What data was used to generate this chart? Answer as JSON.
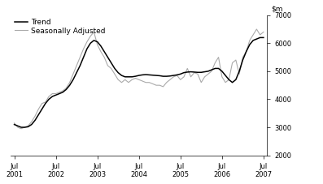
{
  "ylim": [
    2000,
    7000
  ],
  "yticks": [
    2000,
    3000,
    4000,
    5000,
    6000,
    7000
  ],
  "legend_entries": [
    "Trend",
    "Seasonally Adjusted"
  ],
  "trend_color": "#000000",
  "seasonal_color": "#aaaaaa",
  "trend_lw": 1.1,
  "seasonal_lw": 0.8,
  "background_color": "#ffffff",
  "x_tick_labels": [
    "Jul\n2001",
    "Jul\n2002",
    "Jul\n2003",
    "Jul\n2004",
    "Jul\n2005",
    "Jul\n2006",
    "Jul\n2007"
  ],
  "x_tick_positions": [
    0,
    12,
    24,
    36,
    48,
    60,
    72
  ],
  "trend_x": [
    0,
    1,
    2,
    3,
    4,
    5,
    6,
    7,
    8,
    9,
    10,
    11,
    12,
    13,
    14,
    15,
    16,
    17,
    18,
    19,
    20,
    21,
    22,
    23,
    24,
    25,
    26,
    27,
    28,
    29,
    30,
    31,
    32,
    33,
    34,
    35,
    36,
    37,
    38,
    39,
    40,
    41,
    42,
    43,
    44,
    45,
    46,
    47,
    48,
    49,
    50,
    51,
    52,
    53,
    54,
    55,
    56,
    57,
    58,
    59,
    60,
    61,
    62,
    63,
    64,
    65,
    66,
    67,
    68,
    69,
    70,
    71,
    72
  ],
  "trend_y": [
    3100,
    3050,
    3000,
    3000,
    3020,
    3100,
    3250,
    3450,
    3650,
    3850,
    4000,
    4100,
    4150,
    4200,
    4250,
    4350,
    4500,
    4700,
    4950,
    5200,
    5500,
    5800,
    6000,
    6100,
    6050,
    5900,
    5700,
    5500,
    5300,
    5100,
    4950,
    4850,
    4800,
    4800,
    4800,
    4820,
    4850,
    4870,
    4880,
    4870,
    4860,
    4850,
    4840,
    4820,
    4820,
    4830,
    4850,
    4870,
    4900,
    4950,
    4970,
    4980,
    4970,
    4960,
    4960,
    4980,
    5000,
    5050,
    5100,
    5100,
    5000,
    4850,
    4700,
    4600,
    4700,
    5000,
    5400,
    5700,
    5950,
    6100,
    6150,
    6200,
    6200
  ],
  "seasonal_x": [
    0,
    1,
    2,
    3,
    4,
    5,
    6,
    7,
    8,
    9,
    10,
    11,
    12,
    13,
    14,
    15,
    16,
    17,
    18,
    19,
    20,
    21,
    22,
    23,
    24,
    25,
    26,
    27,
    28,
    29,
    30,
    31,
    32,
    33,
    34,
    35,
    36,
    37,
    38,
    39,
    40,
    41,
    42,
    43,
    44,
    45,
    46,
    47,
    48,
    49,
    50,
    51,
    52,
    53,
    54,
    55,
    56,
    57,
    58,
    59,
    60,
    61,
    62,
    63,
    64,
    65,
    66,
    67,
    68,
    69,
    70,
    71,
    72
  ],
  "seasonal_y": [
    3150,
    3000,
    2950,
    3000,
    3050,
    3200,
    3400,
    3650,
    3850,
    3900,
    4100,
    4200,
    4200,
    4250,
    4300,
    4400,
    4600,
    4900,
    5200,
    5500,
    5800,
    6050,
    6250,
    6400,
    5950,
    5700,
    5500,
    5200,
    5100,
    4900,
    4700,
    4600,
    4700,
    4600,
    4700,
    4750,
    4700,
    4650,
    4600,
    4600,
    4550,
    4500,
    4500,
    4450,
    4600,
    4700,
    4800,
    4850,
    4700,
    4800,
    5100,
    4800,
    4950,
    4900,
    4600,
    4800,
    4900,
    5000,
    5300,
    5500,
    4800,
    4600,
    4700,
    5300,
    5400,
    4900,
    5500,
    5700,
    6100,
    6300,
    6500,
    6300,
    6400
  ]
}
